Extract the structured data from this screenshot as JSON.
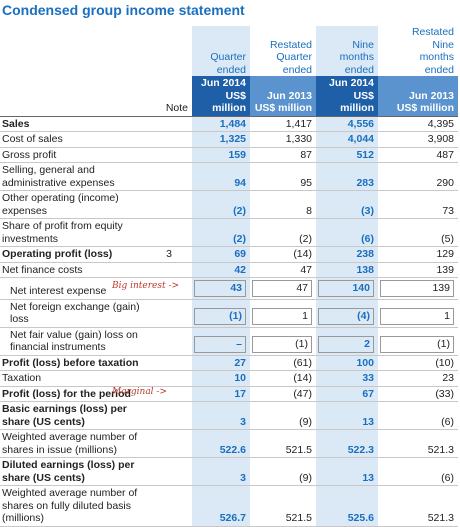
{
  "title": "Condensed group income statement",
  "note_header": "Note",
  "columns": [
    {
      "lines": [
        "Quarter",
        "ended"
      ],
      "period": "Jun 2014",
      "unit": "US$ million",
      "current": true
    },
    {
      "lines": [
        "Restated",
        "Quarter",
        "ended"
      ],
      "period": "Jun 2013",
      "unit": "US$ million",
      "current": false
    },
    {
      "lines": [
        "Nine",
        "months",
        "ended"
      ],
      "period": "Jun 2014",
      "unit": "US$ million",
      "current": true
    },
    {
      "lines": [
        "Restated",
        "Nine",
        "months",
        "ended"
      ],
      "period": "Jun 2013",
      "unit": "US$ million",
      "current": false
    }
  ],
  "rows": [
    {
      "label": "Sales",
      "values": [
        "1,484",
        "1,417",
        "4,556",
        "4,395"
      ],
      "bold": true
    },
    {
      "label": "Cost of sales",
      "values": [
        "1,325",
        "1,330",
        "4,044",
        "3,908"
      ]
    },
    {
      "label": "Gross profit",
      "values": [
        "159",
        "87",
        "512",
        "487"
      ]
    },
    {
      "label": "Selling, general and administrative expenses",
      "values": [
        "94",
        "95",
        "283",
        "290"
      ]
    },
    {
      "label": "Other operating (income) expenses",
      "values": [
        "(2)",
        "8",
        "(3)",
        "73"
      ]
    },
    {
      "label": "Share of profit from equity investments",
      "values": [
        "(2)",
        "(2)",
        "(6)",
        "(5)"
      ]
    },
    {
      "label": "Operating profit (loss)",
      "note": "3",
      "values": [
        "69",
        "(14)",
        "238",
        "129"
      ],
      "bold": true
    },
    {
      "label": "Net finance costs",
      "values": [
        "42",
        "47",
        "138",
        "139"
      ]
    },
    {
      "label": "Net interest expense",
      "values": [
        "43",
        "47",
        "140",
        "139"
      ],
      "indent": true,
      "annotation": "Big interest ->"
    },
    {
      "label": "Net foreign exchange (gain) loss",
      "values": [
        "(1)",
        "1",
        "(4)",
        "1"
      ],
      "indent": true
    },
    {
      "label": "Net fair value (gain) loss on financial instruments",
      "values": [
        "–",
        "(1)",
        "2",
        "(1)"
      ],
      "indent": true
    },
    {
      "label": "Profit (loss) before taxation",
      "values": [
        "27",
        "(61)",
        "100",
        "(10)"
      ],
      "bold": true
    },
    {
      "label": "Taxation",
      "values": [
        "10",
        "(14)",
        "33",
        "23"
      ]
    },
    {
      "label": "Profit (loss) for the period",
      "values": [
        "17",
        "(47)",
        "67",
        "(33)"
      ],
      "bold": true,
      "annotation": "Marginal ->"
    },
    {
      "label": "Basic earnings (loss) per share (US cents)",
      "values": [
        "3",
        "(9)",
        "13",
        "(6)"
      ],
      "bold": true
    },
    {
      "label": "Weighted average number of shares in issue (millions)",
      "values": [
        "522.6",
        "521.5",
        "522.3",
        "521.3"
      ]
    },
    {
      "label": "Diluted earnings (loss) per share (US cents)",
      "values": [
        "3",
        "(9)",
        "13",
        "(6)"
      ],
      "bold": true
    },
    {
      "label": "Weighted average number of shares on fully diluted basis (millions)",
      "values": [
        "526.7",
        "521.5",
        "525.6",
        "521.3"
      ]
    }
  ]
}
